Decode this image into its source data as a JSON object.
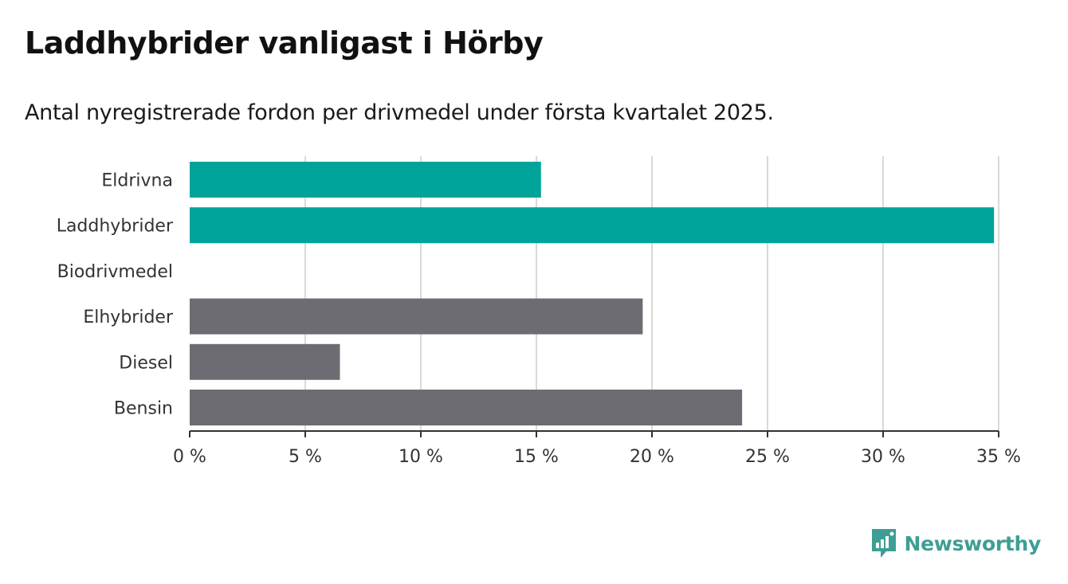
{
  "title": "Laddhybrider vanligast i Hörby",
  "subtitle": "Antal nyregistrerade fordon per drivmedel under första kvartalet 2025.",
  "brand": {
    "name": "Newsworthy",
    "icon": "newsworthy-logo-icon",
    "color": "#3e9e94"
  },
  "colors": {
    "highlight": "#00a49a",
    "default": "#6d6c72",
    "grid": "#d9d9d9",
    "axis": "#333333"
  },
  "chart_data": {
    "type": "bar",
    "orientation": "horizontal",
    "categories": [
      "Eldrivna",
      "Laddhybrider",
      "Biodrivmedel",
      "Elhybrider",
      "Diesel",
      "Bensin"
    ],
    "values": [
      15.2,
      34.8,
      0,
      19.6,
      6.5,
      23.9
    ],
    "highlighted": [
      true,
      true,
      false,
      false,
      false,
      false
    ],
    "xlim": [
      0,
      35
    ],
    "ticks": [
      0,
      5,
      10,
      15,
      20,
      25,
      30,
      35
    ],
    "tick_labels": [
      "0 %",
      "5 %",
      "10 %",
      "15 %",
      "20 %",
      "25 %",
      "30 %",
      "35 %"
    ],
    "unit": "%",
    "grid": true
  }
}
